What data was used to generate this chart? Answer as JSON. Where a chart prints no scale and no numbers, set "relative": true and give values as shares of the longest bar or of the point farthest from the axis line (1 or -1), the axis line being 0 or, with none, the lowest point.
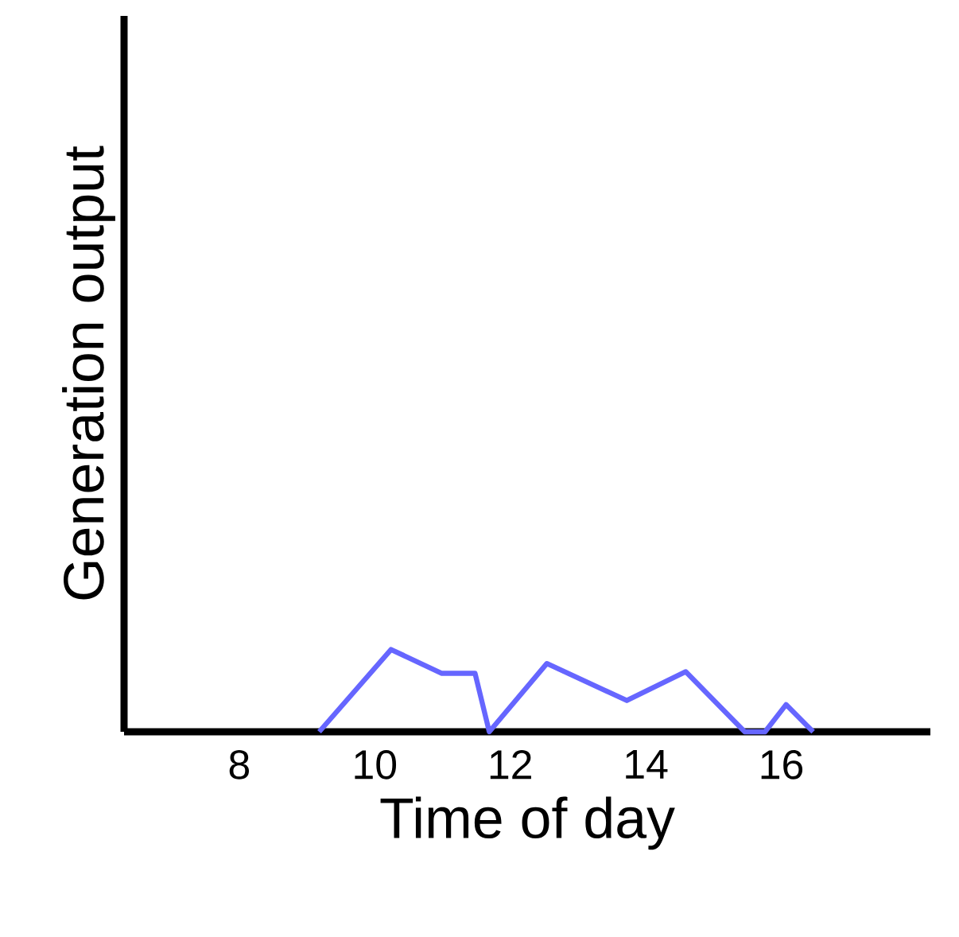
{
  "chart_data": {
    "type": "line",
    "xlabel": "Time of day",
    "ylabel": "Generation output",
    "relative": true,
    "x": [
      9.18,
      10.24,
      10.99,
      11.48,
      11.69,
      12.54,
      13.72,
      14.59,
      15.46,
      15.76,
      16.07,
      16.47
    ],
    "values": [
      0,
      1,
      0.71,
      0.71,
      0,
      0.83,
      0.38,
      0.73,
      0,
      0,
      0.33,
      0
    ],
    "color": "#6666ff",
    "xlim": [
      6.3,
      18.2
    ],
    "xticks": [
      8,
      10,
      12,
      14,
      16
    ],
    "grid": false,
    "marker": "none",
    "line_style": "solid"
  }
}
